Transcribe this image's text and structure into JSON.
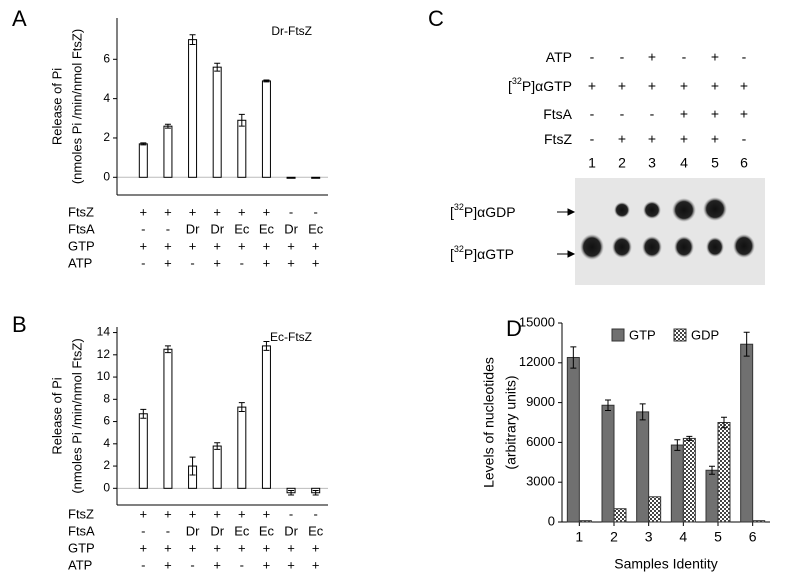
{
  "chart_data": [
    {
      "type": "bar",
      "panel_label": "A",
      "annotation": "Dr-FtsZ",
      "ylabel": [
        "Release of Pi",
        "(nmoles Pi /min/nmol FtsZ)"
      ],
      "values": [
        1.7,
        2.6,
        7.0,
        5.6,
        2.9,
        4.9,
        -0.05,
        -0.05
      ],
      "errors": [
        0.05,
        0.1,
        0.25,
        0.2,
        0.3,
        0.05,
        0,
        0
      ],
      "color": "#ffffff",
      "zero_line": true,
      "ylim": [
        -0.9,
        8.1
      ],
      "yticks": [
        0,
        2,
        4,
        6
      ],
      "conditions": [
        {
          "name": "FtsZ",
          "values": [
            "+",
            "+",
            "+",
            "+",
            "+",
            "+",
            "-",
            "-"
          ]
        },
        {
          "name": "FtsA",
          "values": [
            "-",
            "-",
            "Dr",
            "Dr",
            "Ec",
            "Ec",
            "Dr",
            "Ec"
          ]
        },
        {
          "name": "GTP",
          "values": [
            "+",
            "+",
            "+",
            "+",
            "+",
            "+",
            "+",
            "+"
          ]
        },
        {
          "name": "ATP",
          "values": [
            "-",
            "+",
            "-",
            "+",
            "-",
            "+",
            "+",
            "+"
          ]
        }
      ]
    },
    {
      "type": "bar",
      "panel_label": "B",
      "annotation": "Ec-FtsZ",
      "ylabel": [
        "Release of Pi",
        "(nmoles Pi /min/nmol FtsZ)"
      ],
      "values": [
        6.7,
        12.5,
        2.0,
        3.8,
        7.3,
        12.8,
        -0.4,
        -0.4
      ],
      "errors": [
        0.4,
        0.3,
        0.8,
        0.3,
        0.4,
        0.4,
        0.2,
        0.2
      ],
      "color": "#ffffff",
      "zero_line": true,
      "ylim": [
        -1.5,
        14.5
      ],
      "yticks": [
        0,
        2,
        4,
        6,
        8,
        10,
        12,
        14
      ],
      "conditions": [
        {
          "name": "FtsZ",
          "values": [
            "+",
            "+",
            "+",
            "+",
            "+",
            "+",
            "-",
            "-"
          ]
        },
        {
          "name": "FtsA",
          "values": [
            "-",
            "-",
            "Dr",
            "Dr",
            "Ec",
            "Ec",
            "Dr",
            "Ec"
          ]
        },
        {
          "name": "GTP",
          "values": [
            "+",
            "+",
            "+",
            "+",
            "+",
            "+",
            "+",
            "+"
          ]
        },
        {
          "name": "ATP",
          "values": [
            "-",
            "+",
            "-",
            "+",
            "-",
            "+",
            "+",
            "+"
          ]
        }
      ]
    },
    {
      "type": "grouped-bar",
      "panel_label": "D",
      "ylabel": [
        "Levels of nucleotides",
        "(arbitrary units)"
      ],
      "xlabel": "Samples Identity",
      "categories": [
        "1",
        "2",
        "3",
        "4",
        "5",
        "6"
      ],
      "series": [
        {
          "name": "GTP",
          "color": "#707070",
          "values": [
            12400,
            8800,
            8300,
            5800,
            3900,
            13400
          ],
          "errors": [
            800,
            400,
            600,
            400,
            300,
            900
          ]
        },
        {
          "name": "GDP",
          "color": "#ffffff",
          "pattern": "checkerboard",
          "values": [
            100,
            1000,
            1900,
            6300,
            7500,
            100
          ],
          "errors": [
            0,
            0,
            0,
            150,
            400,
            0
          ]
        }
      ],
      "ylim": [
        0,
        15000
      ],
      "yticks": [
        0,
        3000,
        6000,
        9000,
        12000,
        15000
      ]
    }
  ],
  "gel": {
    "panel_label": "C",
    "conditions": [
      {
        "name": [
          "ATP"
        ],
        "values": [
          "-",
          "-",
          "+",
          "-",
          "+",
          "-"
        ]
      },
      {
        "name": [
          "[",
          "32",
          "P]αGTP"
        ],
        "values": [
          "+",
          "+",
          "+",
          "+",
          "+",
          "+"
        ]
      },
      {
        "name": [
          "FtsA"
        ],
        "values": [
          "-",
          "-",
          "-",
          "+",
          "+",
          "+"
        ]
      },
      {
        "name": [
          "FtsZ"
        ],
        "values": [
          "-",
          "+",
          "+",
          "+",
          "+",
          "-"
        ]
      }
    ],
    "lanes": [
      "1",
      "2",
      "3",
      "4",
      "5",
      "6"
    ],
    "bands": [
      [
        "[",
        "32",
        "P]αGDP"
      ],
      [
        "[",
        "32",
        "P]αGTP"
      ]
    ]
  }
}
